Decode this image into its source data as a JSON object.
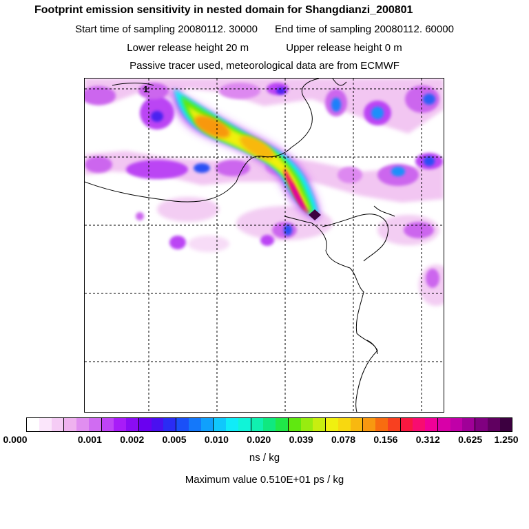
{
  "header": {
    "title": "Footprint emission sensitivity in nested domain for Shangdianzi_200801",
    "start_label": "Start time of sampling 20080112. 30000",
    "end_label": "End time of sampling 20080112. 60000",
    "lower_label": "Lower release height   20 m",
    "upper_label": "Upper release height    0 m",
    "note": "Passive tracer used, meteorological data are from ECMWF"
  },
  "map": {
    "grid_marker": "1"
  },
  "legend": {
    "ticks": [
      "0.000",
      "0.001",
      "0.002",
      "0.005",
      "0.010",
      "0.020",
      "0.039",
      "0.078",
      "0.156",
      "0.312",
      "0.625",
      "1.250"
    ],
    "unit": "ns / kg",
    "maximum": "Maximum value  0.510E+01 ps / kg",
    "colors": [
      "#ffffff",
      "#fbe6fb",
      "#f5ccf5",
      "#efb2ef",
      "#e08ef0",
      "#d06cf2",
      "#bf44f6",
      "#a81cf8",
      "#8a0cf4",
      "#6a00f0",
      "#4a10f0",
      "#2a2cf4",
      "#1a50f8",
      "#1478fa",
      "#10a0fc",
      "#10c8fc",
      "#10ecf8",
      "#10f4d8",
      "#10f0b0",
      "#10e880",
      "#20e848",
      "#60e810",
      "#98ec10",
      "#c8ee10",
      "#f0f010",
      "#f8d810",
      "#f8b810",
      "#f89810",
      "#f86c10",
      "#f84020",
      "#f81840",
      "#f80c70",
      "#f00098",
      "#d800a8",
      "#c000a8",
      "#a00098",
      "#800080",
      "#600060",
      "#3c0040"
    ]
  }
}
